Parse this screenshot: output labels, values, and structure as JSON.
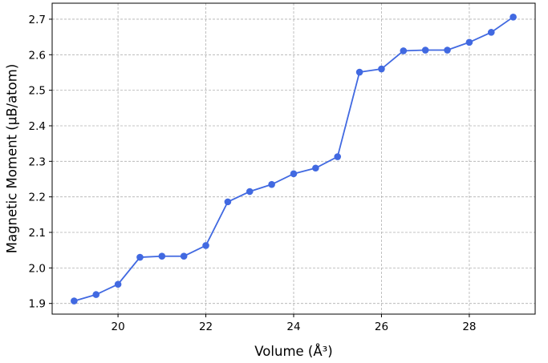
{
  "chart_data": {
    "type": "line",
    "title": "",
    "xlabel": "Volume (Å³)",
    "ylabel": "Magnetic Moment (μB/atom)",
    "xlim": [
      18.5,
      29.5
    ],
    "ylim": [
      1.87,
      2.745
    ],
    "x_ticks": [
      20,
      22,
      24,
      26,
      28
    ],
    "y_ticks": [
      1.9,
      2.0,
      2.1,
      2.2,
      2.3,
      2.4,
      2.5,
      2.6,
      2.7
    ],
    "grid": true,
    "legend": "none",
    "series": [
      {
        "color": "#4169e1",
        "marker": "circle",
        "x": [
          19.0,
          19.5,
          20.0,
          20.5,
          21.0,
          21.5,
          22.0,
          22.5,
          23.0,
          23.5,
          24.0,
          24.5,
          25.0,
          25.5,
          26.0,
          26.5,
          27.0,
          27.5,
          28.0,
          28.5,
          29.0
        ],
        "y": [
          1.907,
          1.925,
          1.954,
          2.03,
          2.033,
          2.033,
          2.063,
          2.186,
          2.215,
          2.235,
          2.265,
          2.281,
          2.313,
          2.551,
          2.56,
          2.611,
          2.613,
          2.613,
          2.635,
          2.663,
          2.706
        ]
      }
    ]
  }
}
